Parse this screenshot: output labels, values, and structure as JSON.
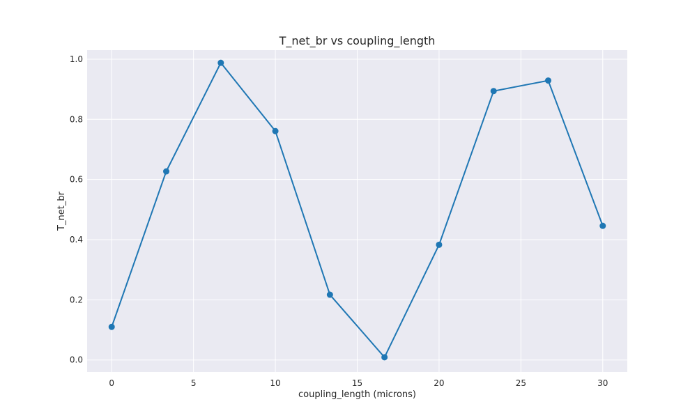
{
  "chart_data": {
    "type": "line",
    "title": "T_net_br vs coupling_length",
    "xlabel": "coupling_length (microns)",
    "ylabel": "T_net_br",
    "xlim": [
      -1.5,
      31.5
    ],
    "ylim": [
      -0.04,
      1.03
    ],
    "xticks": [
      0,
      5,
      10,
      15,
      20,
      25,
      30
    ],
    "yticks": [
      0.0,
      0.2,
      0.4,
      0.6,
      0.8,
      1.0
    ],
    "xtick_labels": [
      "0",
      "5",
      "10",
      "15",
      "20",
      "25",
      "30"
    ],
    "ytick_labels": [
      "0.0",
      "0.2",
      "0.4",
      "0.6",
      "0.8",
      "1.0"
    ],
    "grid": true,
    "legend": "none",
    "series": [
      {
        "x": [
          0,
          3.333,
          6.667,
          10,
          13.333,
          16.667,
          20,
          23.333,
          26.667,
          30
        ],
        "y": [
          0.11,
          0.627,
          0.988,
          0.761,
          0.217,
          0.009,
          0.383,
          0.894,
          0.929,
          0.446
        ],
        "color": "#1f77b4",
        "marker": "circle"
      }
    ]
  },
  "colors": {
    "plot_background": "#eaeaf2",
    "grid": "#ffffff",
    "line": "#1f77b4"
  }
}
